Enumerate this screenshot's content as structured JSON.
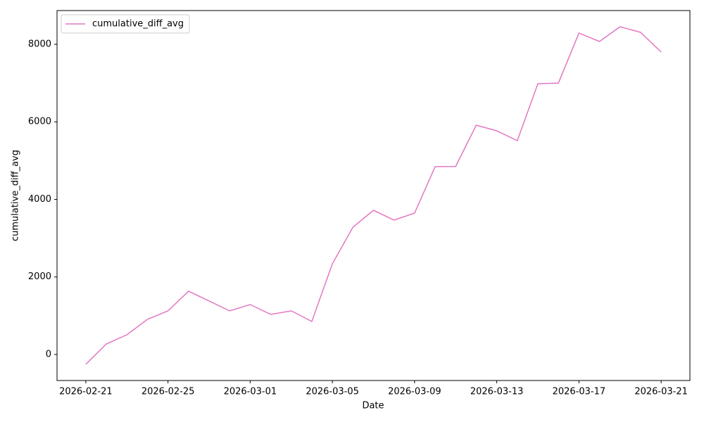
{
  "chart_data": {
    "type": "line",
    "x_label": "Date",
    "y_label": "cumulative_diff_avg",
    "x": [
      "2026-02-21",
      "2026-02-22",
      "2026-02-23",
      "2026-02-24",
      "2026-02-25",
      "2026-02-26",
      "2026-02-27",
      "2026-02-28",
      "2026-03-01",
      "2026-03-02",
      "2026-03-03",
      "2026-03-04",
      "2026-03-05",
      "2026-03-06",
      "2026-03-07",
      "2026-03-08",
      "2026-03-09",
      "2026-03-10",
      "2026-03-11",
      "2026-03-12",
      "2026-03-13",
      "2026-03-14",
      "2026-03-15",
      "2026-03-16",
      "2026-03-17",
      "2026-03-18",
      "2026-03-19",
      "2026-03-20",
      "2026-03-21"
    ],
    "series": [
      {
        "name": "cumulative_diff_avg",
        "color": "#e377c2",
        "values": [
          -254,
          272,
          508,
          907,
          1125,
          1632,
          1379,
          1125,
          1288,
          1034,
          1125,
          853,
          2340,
          3283,
          3718,
          3465,
          3646,
          4843,
          4850,
          5913,
          5768,
          5514,
          6984,
          7000,
          8290,
          8072,
          8453,
          8308,
          7800
        ]
      }
    ],
    "xticks": [
      "2026-02-21",
      "2026-02-25",
      "2026-03-01",
      "2026-03-05",
      "2026-03-09",
      "2026-03-13",
      "2026-03-17",
      "2026-03-21"
    ],
    "ylim": [
      -671,
      8870
    ],
    "yticks": [
      0,
      2000,
      4000,
      6000,
      8000
    ],
    "legend": "upper left",
    "grid": false
  }
}
